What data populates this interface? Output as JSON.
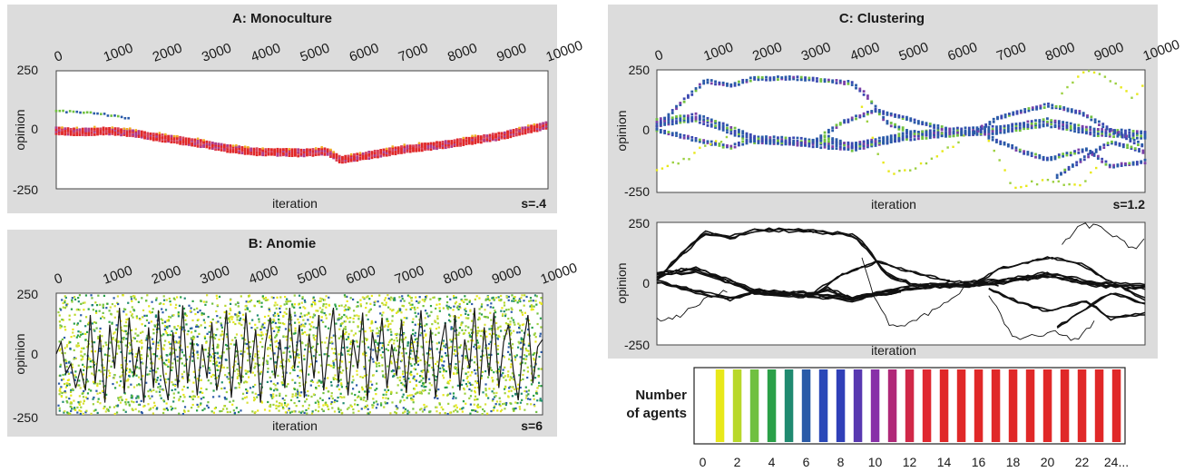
{
  "chart_data": [
    {
      "id": "A",
      "type": "scatter",
      "title": "A: Monoculture",
      "xlabel": "iteration",
      "ylabel": "opinion",
      "xlim": [
        0,
        10000
      ],
      "ylim": [
        -250,
        250
      ],
      "x_ticks": [
        0,
        1000,
        2000,
        3000,
        4000,
        5000,
        6000,
        7000,
        8000,
        9000,
        10000
      ],
      "y_ticks": [
        250,
        0,
        -250
      ],
      "annotation": "s=.4",
      "main_cluster_path": [
        [
          0,
          -5
        ],
        [
          500,
          -10
        ],
        [
          1000,
          -5
        ],
        [
          1500,
          -12
        ],
        [
          2000,
          -30
        ],
        [
          2500,
          -45
        ],
        [
          3000,
          -60
        ],
        [
          3500,
          -80
        ],
        [
          4000,
          -92
        ],
        [
          4500,
          -95
        ],
        [
          5000,
          -98
        ],
        [
          5500,
          -92
        ],
        [
          5800,
          -128
        ],
        [
          6300,
          -110
        ],
        [
          7000,
          -85
        ],
        [
          8000,
          -60
        ],
        [
          9000,
          -28
        ],
        [
          10000,
          20
        ]
      ],
      "minor_cluster_path": [
        [
          0,
          80
        ],
        [
          500,
          75
        ],
        [
          1000,
          65
        ],
        [
          1500,
          45
        ]
      ]
    },
    {
      "id": "B",
      "type": "scatter",
      "title": "B: Anomie",
      "xlabel": "iteration",
      "ylabel": "opinion",
      "xlim": [
        0,
        10000
      ],
      "ylim": [
        -250,
        250
      ],
      "x_ticks": [
        0,
        1000,
        2000,
        3000,
        4000,
        5000,
        6000,
        7000,
        8000,
        9000,
        10000
      ],
      "y_ticks": [
        250,
        0,
        -250
      ],
      "annotation": "s=6",
      "trace": [
        [
          0,
          0
        ],
        [
          100,
          50
        ],
        [
          200,
          -80
        ],
        [
          300,
          -40
        ],
        [
          400,
          -140
        ],
        [
          500,
          -60
        ],
        [
          600,
          -150
        ],
        [
          700,
          160
        ],
        [
          800,
          -120
        ],
        [
          900,
          80
        ],
        [
          1000,
          -200
        ],
        [
          1100,
          120
        ],
        [
          1200,
          -60
        ],
        [
          1300,
          190
        ],
        [
          1400,
          -160
        ],
        [
          1500,
          150
        ],
        [
          1600,
          -90
        ],
        [
          1700,
          30
        ],
        [
          1800,
          -200
        ],
        [
          1900,
          110
        ],
        [
          2000,
          -140
        ],
        [
          2100,
          180
        ],
        [
          2200,
          -80
        ],
        [
          2300,
          -190
        ],
        [
          2400,
          90
        ],
        [
          2500,
          -140
        ],
        [
          2600,
          200
        ],
        [
          2700,
          -120
        ],
        [
          2800,
          60
        ],
        [
          2900,
          -170
        ],
        [
          3000,
          40
        ],
        [
          3100,
          -100
        ],
        [
          3200,
          130
        ],
        [
          3300,
          -150
        ],
        [
          3400,
          -40
        ],
        [
          3500,
          180
        ],
        [
          3600,
          -180
        ],
        [
          3700,
          60
        ],
        [
          3800,
          -120
        ],
        [
          3900,
          170
        ],
        [
          4000,
          -80
        ],
        [
          4100,
          100
        ],
        [
          4200,
          -200
        ],
        [
          4300,
          40
        ],
        [
          4400,
          150
        ],
        [
          4500,
          -100
        ],
        [
          4600,
          60
        ],
        [
          4700,
          -140
        ],
        [
          4800,
          190
        ],
        [
          4900,
          -60
        ],
        [
          5000,
          120
        ],
        [
          5100,
          -180
        ],
        [
          5200,
          80
        ],
        [
          5300,
          -100
        ],
        [
          5400,
          160
        ],
        [
          5500,
          -150
        ],
        [
          5600,
          40
        ],
        [
          5700,
          190
        ],
        [
          5800,
          -120
        ],
        [
          5900,
          100
        ],
        [
          6000,
          -170
        ],
        [
          6100,
          60
        ],
        [
          6200,
          -60
        ],
        [
          6300,
          170
        ],
        [
          6400,
          -190
        ],
        [
          6500,
          90
        ],
        [
          6600,
          -30
        ],
        [
          6700,
          150
        ],
        [
          6800,
          -140
        ],
        [
          6900,
          40
        ],
        [
          7000,
          -90
        ],
        [
          7100,
          140
        ],
        [
          7200,
          -160
        ],
        [
          7300,
          80
        ],
        [
          7400,
          -40
        ],
        [
          7500,
          180
        ],
        [
          7600,
          -120
        ],
        [
          7700,
          100
        ],
        [
          7800,
          -180
        ],
        [
          7900,
          20
        ],
        [
          8000,
          130
        ],
        [
          8100,
          -100
        ],
        [
          8200,
          160
        ],
        [
          8300,
          -150
        ],
        [
          8400,
          60
        ],
        [
          8500,
          -60
        ],
        [
          8600,
          190
        ],
        [
          8700,
          -170
        ],
        [
          8800,
          110
        ],
        [
          8900,
          -90
        ],
        [
          9000,
          170
        ],
        [
          9100,
          -140
        ],
        [
          9200,
          50
        ],
        [
          9300,
          120
        ],
        [
          9400,
          -70
        ],
        [
          9500,
          -190
        ],
        [
          9600,
          40
        ],
        [
          9700,
          160
        ],
        [
          9800,
          -120
        ],
        [
          9900,
          30
        ],
        [
          10000,
          60
        ]
      ]
    },
    {
      "id": "C",
      "type": "scatter",
      "title": "C: Clustering",
      "xlabel": "iteration",
      "ylabel": "opinion",
      "xlim": [
        0,
        10000
      ],
      "ylim": [
        -250,
        250
      ],
      "x_ticks": [
        0,
        1000,
        2000,
        3000,
        4000,
        5000,
        6000,
        7000,
        8000,
        9000,
        10000
      ],
      "y_ticks": [
        250,
        0,
        -250
      ],
      "annotation": "s=1.2",
      "clusters": [
        {
          "path": [
            [
              0,
              40
            ],
            [
              800,
              60
            ],
            [
              1500,
              10
            ],
            [
              2000,
              -30
            ],
            [
              3000,
              -40
            ],
            [
              4000,
              -60
            ],
            [
              5000,
              -20
            ],
            [
              6000,
              0
            ],
            [
              7000,
              10
            ],
            [
              8000,
              40
            ],
            [
              9000,
              0
            ],
            [
              10000,
              -10
            ]
          ],
          "width": 16
        },
        {
          "path": [
            [
              0,
              20
            ],
            [
              500,
              120
            ],
            [
              1000,
              210
            ],
            [
              1500,
              190
            ],
            [
              2000,
              220
            ],
            [
              3000,
              220
            ],
            [
              3500,
              210
            ],
            [
              4000,
              200
            ],
            [
              4300,
              150
            ],
            [
              4700,
              40
            ],
            [
              5200,
              0
            ],
            [
              6000,
              -10
            ],
            [
              7000,
              0
            ]
          ],
          "width": 9
        },
        {
          "path": [
            [
              0,
              10
            ],
            [
              1000,
              -40
            ],
            [
              1500,
              -60
            ],
            [
              2000,
              -30
            ],
            [
              3000,
              -50
            ],
            [
              3500,
              -20
            ],
            [
              4000,
              -60
            ],
            [
              4500,
              -40
            ],
            [
              5000,
              -30
            ]
          ],
          "width": 8
        },
        {
          "path": [
            [
              3200,
              -40
            ],
            [
              3800,
              40
            ],
            [
              4500,
              90
            ],
            [
              5200,
              50
            ],
            [
              6000,
              10
            ]
          ],
          "width": 4
        },
        {
          "path": [
            [
              6500,
              0
            ],
            [
              7000,
              60
            ],
            [
              8000,
              110
            ],
            [
              8700,
              80
            ],
            [
              9200,
              20
            ],
            [
              10000,
              -60
            ]
          ],
          "width": 6
        },
        {
          "path": [
            [
              6800,
              -20
            ],
            [
              7500,
              -80
            ],
            [
              8000,
              -110
            ],
            [
              8800,
              -70
            ],
            [
              9300,
              -140
            ],
            [
              10000,
              -120
            ]
          ],
          "width": 6
        },
        {
          "path": [
            [
              8200,
              -180
            ],
            [
              8800,
              -100
            ],
            [
              9300,
              -40
            ],
            [
              10000,
              -80
            ]
          ],
          "width": 3
        }
      ],
      "outlier_paths": [
        {
          "path": [
            [
              0,
              -150
            ],
            [
              500,
              -130
            ],
            [
              1000,
              -60
            ],
            [
              1500,
              -20
            ]
          ]
        },
        {
          "path": [
            [
              4200,
              100
            ],
            [
              4500,
              -80
            ],
            [
              4800,
              -180
            ],
            [
              5200,
              -160
            ],
            [
              5700,
              -110
            ],
            [
              6300,
              -20
            ]
          ]
        },
        {
          "path": [
            [
              6800,
              -40
            ],
            [
              7300,
              -230
            ],
            [
              7800,
              -210
            ],
            [
              8200,
              -200
            ],
            [
              8600,
              -230
            ],
            [
              9000,
              -150
            ]
          ]
        },
        {
          "path": [
            [
              8300,
              160
            ],
            [
              8700,
              240
            ],
            [
              9100,
              230
            ],
            [
              9400,
              190
            ],
            [
              9800,
              130
            ],
            [
              10000,
              200
            ]
          ]
        }
      ]
    }
  ],
  "legend": {
    "title_line1": "Number",
    "title_line2": "of agents",
    "labels": [
      "0",
      "2",
      "4",
      "6",
      "8",
      "10",
      "12",
      "14",
      "16",
      "18",
      "20",
      "22",
      "24..."
    ],
    "colors": [
      "#ffffff",
      "#e8e81a",
      "#b8d82a",
      "#70c040",
      "#2aa048",
      "#208a70",
      "#2a5aa8",
      "#2a48b8",
      "#3040b8",
      "#5838b0",
      "#8830a8",
      "#b02878",
      "#d02848",
      "#e02830",
      "#e02828",
      "#e02828",
      "#e02828",
      "#e02828",
      "#e02828",
      "#e02828",
      "#e02828",
      "#e02828",
      "#e02828",
      "#e02828",
      "#e02828"
    ]
  }
}
